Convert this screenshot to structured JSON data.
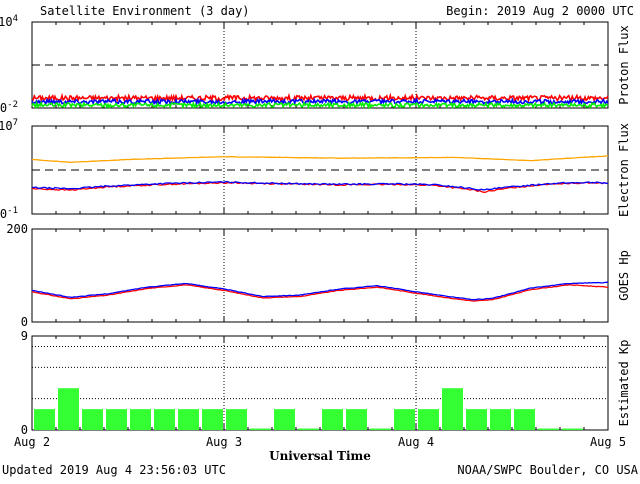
{
  "header": {
    "title": "Satellite Environment (3 day)",
    "begin": "Begin:  2019 Aug 2 0000 UTC"
  },
  "footer": {
    "updated": "Updated 2019 Aug  4 23:56:03 UTC",
    "credit": "NOAA/SWPC Boulder, CO USA"
  },
  "x_axis": {
    "title": "Universal Time",
    "ticks": [
      "Aug 2",
      "Aug 3",
      "Aug 4",
      "Aug 5"
    ]
  },
  "colors": {
    "red": "#ff0000",
    "blue": "#0000ff",
    "green": "#00ee00",
    "orange": "#ffa500",
    "kp_bar": "#33ff33"
  },
  "chart_data": [
    {
      "type": "line",
      "ylabel": "Proton Flux",
      "y_scale": "log",
      "ylim": [
        0.01,
        10000
      ],
      "y_tick_labels": [
        {
          "base": "10",
          "exp": "4",
          "value": 10000
        },
        {
          "base": "10",
          "exp": "-2",
          "value": 0.01
        }
      ],
      "threshold": 10,
      "x_days": [
        0,
        3
      ],
      "series": [
        {
          "color": "red",
          "level": 0.05,
          "noise": 0.35,
          "values": null
        },
        {
          "color": "blue",
          "level": 0.028,
          "noise": 0.3
        },
        {
          "color": "green",
          "level": 0.016,
          "noise": 0.3
        }
      ]
    },
    {
      "type": "line",
      "ylabel": "Electron Flux",
      "y_scale": "log",
      "ylim": [
        0.1,
        10000000
      ],
      "y_tick_labels": [
        {
          "base": "10",
          "exp": "7",
          "value": 10000000
        },
        {
          "base": "10",
          "exp": "-1",
          "value": 0.1
        }
      ],
      "threshold": 1000,
      "x_days": [
        0,
        3
      ],
      "series": [
        {
          "color": "orange",
          "x": [
            0,
            0.2,
            0.5,
            0.8,
            1.0,
            1.3,
            1.6,
            2.0,
            2.2,
            2.4,
            2.6,
            2.8,
            3.0
          ],
          "values": [
            9000,
            5000,
            9000,
            13000,
            16000,
            14000,
            12000,
            13000,
            14000,
            10000,
            7000,
            12000,
            19000
          ]
        },
        {
          "color": "red",
          "x": [
            0,
            0.2,
            0.4,
            0.7,
            1.0,
            1.3,
            1.6,
            1.9,
            2.1,
            2.3,
            2.35,
            2.5,
            2.7,
            2.9,
            3.0
          ],
          "values": [
            20,
            15,
            30,
            50,
            70,
            55,
            45,
            50,
            40,
            15,
            10,
            25,
            55,
            70,
            60
          ]
        },
        {
          "color": "blue",
          "x": [
            0,
            0.2,
            0.4,
            0.7,
            1.0,
            1.3,
            1.6,
            1.9,
            2.1,
            2.3,
            2.35,
            2.5,
            2.7,
            2.9,
            3.0
          ],
          "values": [
            25,
            20,
            35,
            60,
            80,
            60,
            50,
            55,
            45,
            20,
            15,
            30,
            60,
            75,
            65
          ]
        }
      ]
    },
    {
      "type": "line",
      "ylabel": "GOES Hp",
      "y_scale": "linear",
      "ylim": [
        0,
        200
      ],
      "y_tick_labels": [
        {
          "base": "200",
          "value": 200
        },
        {
          "base": "0",
          "value": 0
        }
      ],
      "x_days": [
        0,
        3
      ],
      "series": [
        {
          "color": "red",
          "x": [
            0,
            0.2,
            0.4,
            0.6,
            0.8,
            1.0,
            1.2,
            1.4,
            1.6,
            1.8,
            2.0,
            2.2,
            2.3,
            2.4,
            2.6,
            2.8,
            3.0
          ],
          "values": [
            65,
            50,
            58,
            72,
            80,
            68,
            52,
            55,
            68,
            75,
            62,
            50,
            45,
            48,
            70,
            80,
            75
          ]
        },
        {
          "color": "blue",
          "x": [
            0,
            0.2,
            0.4,
            0.6,
            0.8,
            1.0,
            1.2,
            1.4,
            1.6,
            1.8,
            2.0,
            2.2,
            2.3,
            2.4,
            2.6,
            2.8,
            3.0
          ],
          "values": [
            68,
            53,
            61,
            75,
            83,
            71,
            55,
            58,
            71,
            78,
            65,
            53,
            48,
            51,
            73,
            83,
            85
          ]
        }
      ]
    },
    {
      "type": "bar",
      "ylabel": "Estimated Kp",
      "ylim": [
        0,
        9
      ],
      "y_tick_labels": [
        {
          "base": "9",
          "value": 9
        },
        {
          "base": "0",
          "value": 0
        }
      ],
      "gridlines": [
        3,
        6,
        8
      ],
      "values": [
        2,
        4,
        2,
        2,
        2,
        2,
        2,
        2,
        2,
        0,
        2,
        0,
        2,
        2,
        0,
        2,
        2,
        4,
        2,
        2,
        2,
        0,
        0
      ]
    }
  ]
}
